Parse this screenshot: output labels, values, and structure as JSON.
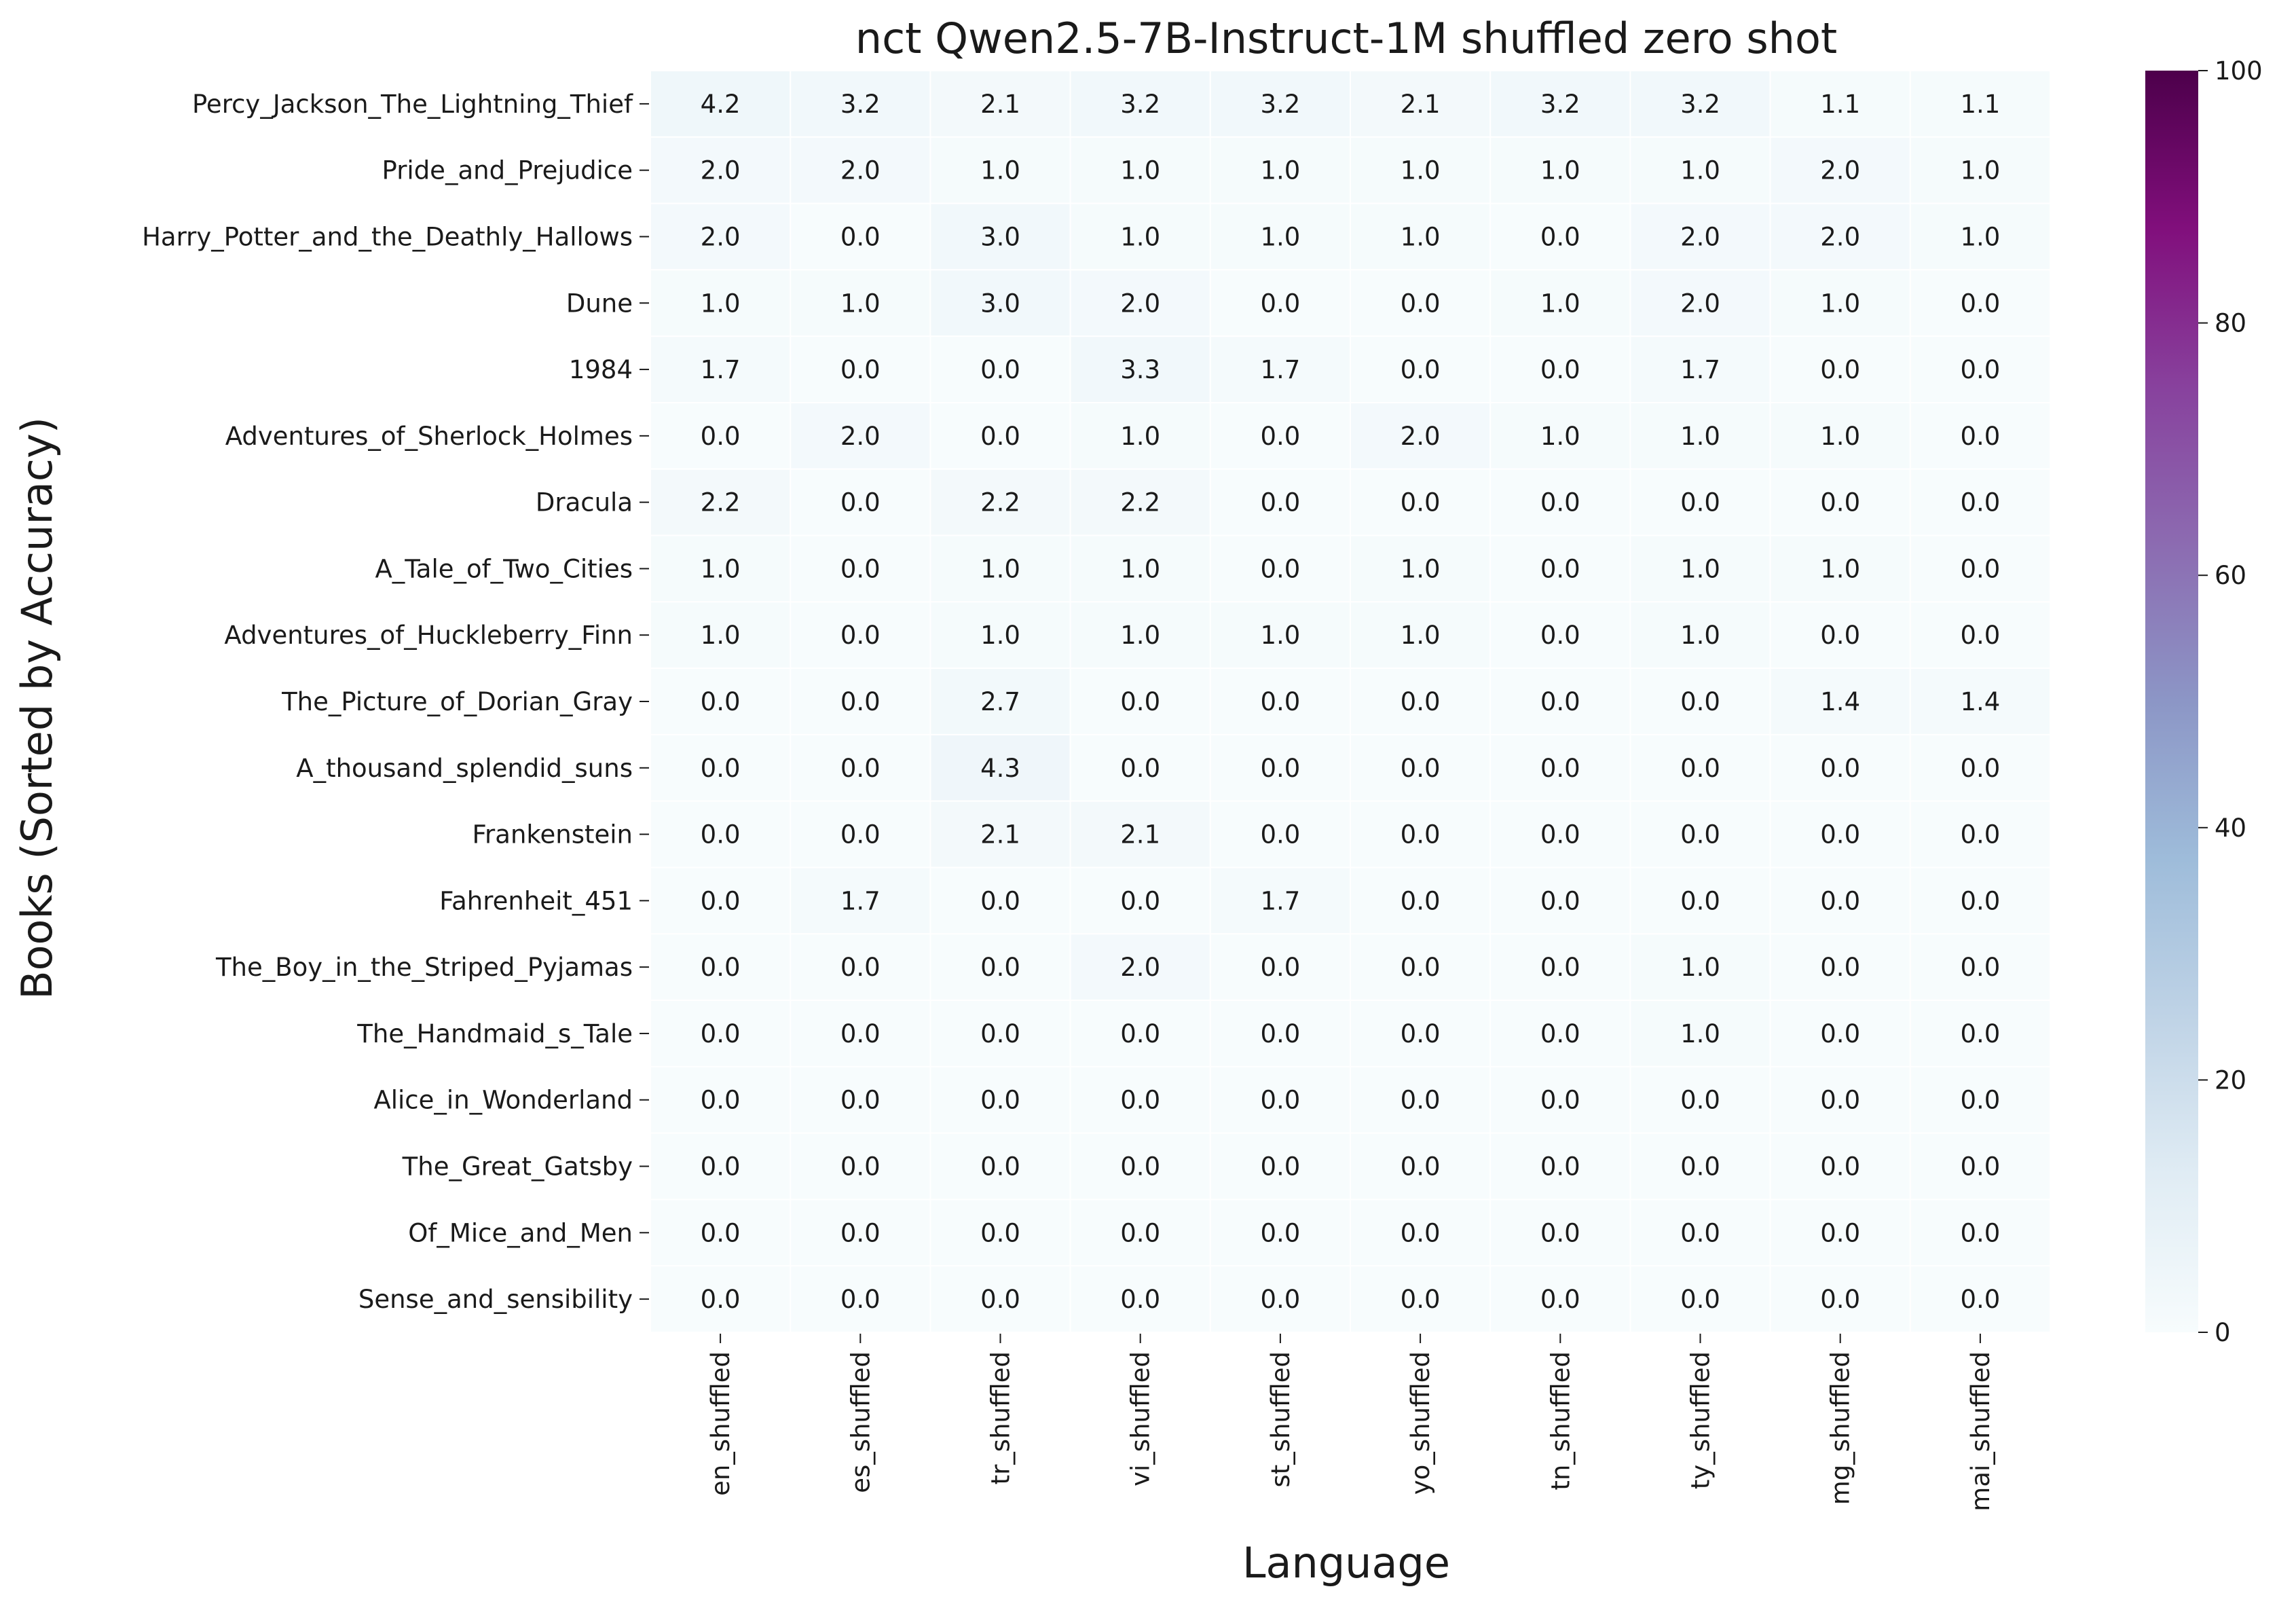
{
  "chart_data": {
    "type": "heatmap",
    "title": "nct Qwen2.5-7B-Instruct-1M shuffled zero shot",
    "xlabel": "Language",
    "ylabel": "Books (Sorted by Accuracy)",
    "colorscale": "BuPu",
    "color_range": [
      0,
      100
    ],
    "colorbar_ticks": [
      "0",
      "20",
      "40",
      "60",
      "80",
      "100"
    ],
    "colorbar_tick_values": [
      0,
      20,
      40,
      60,
      80,
      100
    ],
    "x_categories": [
      "en_shuffled",
      "es_shuffled",
      "tr_shuffled",
      "vi_shuffled",
      "st_shuffled",
      "yo_shuffled",
      "tn_shuffled",
      "ty_shuffled",
      "mg_shuffled",
      "mai_shuffled"
    ],
    "y_categories": [
      "Percy_Jackson_The_Lightning_Thief",
      "Pride_and_Prejudice",
      "Harry_Potter_and_the_Deathly_Hallows",
      "Dune",
      "1984",
      "Adventures_of_Sherlock_Holmes",
      "Dracula",
      "A_Tale_of_Two_Cities",
      "Adventures_of_Huckleberry_Finn",
      "The_Picture_of_Dorian_Gray",
      "A_thousand_splendid_suns",
      "Frankenstein",
      "Fahrenheit_451",
      "The_Boy_in_the_Striped_Pyjamas",
      "The_Handmaid_s_Tale",
      "Alice_in_Wonderland",
      "The_Great_Gatsby",
      "Of_Mice_and_Men",
      "Sense_and_sensibility"
    ],
    "values": [
      [
        "4.2",
        "3.2",
        "2.1",
        "3.2",
        "3.2",
        "2.1",
        "3.2",
        "3.2",
        "1.1",
        "1.1"
      ],
      [
        "2.0",
        "2.0",
        "1.0",
        "1.0",
        "1.0",
        "1.0",
        "1.0",
        "1.0",
        "2.0",
        "1.0"
      ],
      [
        "2.0",
        "0.0",
        "3.0",
        "1.0",
        "1.0",
        "1.0",
        "0.0",
        "2.0",
        "2.0",
        "1.0"
      ],
      [
        "1.0",
        "1.0",
        "3.0",
        "2.0",
        "0.0",
        "0.0",
        "1.0",
        "2.0",
        "1.0",
        "0.0"
      ],
      [
        "1.7",
        "0.0",
        "0.0",
        "3.3",
        "1.7",
        "0.0",
        "0.0",
        "1.7",
        "0.0",
        "0.0"
      ],
      [
        "0.0",
        "2.0",
        "0.0",
        "1.0",
        "0.0",
        "2.0",
        "1.0",
        "1.0",
        "1.0",
        "0.0"
      ],
      [
        "2.2",
        "0.0",
        "2.2",
        "2.2",
        "0.0",
        "0.0",
        "0.0",
        "0.0",
        "0.0",
        "0.0"
      ],
      [
        "1.0",
        "0.0",
        "1.0",
        "1.0",
        "0.0",
        "1.0",
        "0.0",
        "1.0",
        "1.0",
        "0.0"
      ],
      [
        "1.0",
        "0.0",
        "1.0",
        "1.0",
        "1.0",
        "1.0",
        "0.0",
        "1.0",
        "0.0",
        "0.0"
      ],
      [
        "0.0",
        "0.0",
        "2.7",
        "0.0",
        "0.0",
        "0.0",
        "0.0",
        "0.0",
        "1.4",
        "1.4"
      ],
      [
        "0.0",
        "0.0",
        "4.3",
        "0.0",
        "0.0",
        "0.0",
        "0.0",
        "0.0",
        "0.0",
        "0.0"
      ],
      [
        "0.0",
        "0.0",
        "2.1",
        "2.1",
        "0.0",
        "0.0",
        "0.0",
        "0.0",
        "0.0",
        "0.0"
      ],
      [
        "0.0",
        "1.7",
        "0.0",
        "0.0",
        "1.7",
        "0.0",
        "0.0",
        "0.0",
        "0.0",
        "0.0"
      ],
      [
        "0.0",
        "0.0",
        "0.0",
        "2.0",
        "0.0",
        "0.0",
        "0.0",
        "1.0",
        "0.0",
        "0.0"
      ],
      [
        "0.0",
        "0.0",
        "0.0",
        "0.0",
        "0.0",
        "0.0",
        "0.0",
        "1.0",
        "0.0",
        "0.0"
      ],
      [
        "0.0",
        "0.0",
        "0.0",
        "0.0",
        "0.0",
        "0.0",
        "0.0",
        "0.0",
        "0.0",
        "0.0"
      ],
      [
        "0.0",
        "0.0",
        "0.0",
        "0.0",
        "0.0",
        "0.0",
        "0.0",
        "0.0",
        "0.0",
        "0.0"
      ],
      [
        "0.0",
        "0.0",
        "0.0",
        "0.0",
        "0.0",
        "0.0",
        "0.0",
        "0.0",
        "0.0",
        "0.0"
      ],
      [
        "0.0",
        "0.0",
        "0.0",
        "0.0",
        "0.0",
        "0.0",
        "0.0",
        "0.0",
        "0.0",
        "0.0"
      ]
    ]
  }
}
